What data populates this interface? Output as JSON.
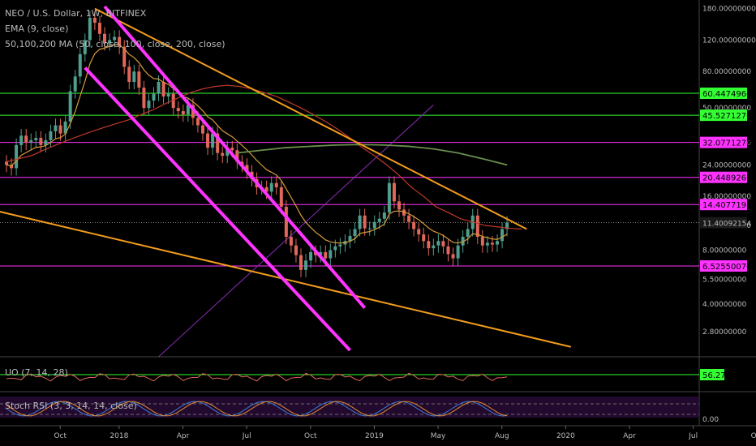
{
  "legend": {
    "symbol": "NEO / U.S. Dollar, 1W, BITFINEX",
    "ema": "EMA (9, close)",
    "ma": "50,100,200 MA (50, close, 100, close, 200, close)",
    "uo": "UO (7, 14, 28)",
    "stoch": "Stoch RSI (3, 3, 14, 14, close)"
  },
  "colors": {
    "background": "#000000",
    "up": "#4f9e8e",
    "down": "#e0685a",
    "ema": "#d69b3a",
    "ma50": "#c0392b",
    "ma100": "#6a8f4e",
    "trend_orange": "#f29d1c",
    "channel_magenta": "#ff33ff",
    "level_green": "#33ff33",
    "level_magenta": "#ff33ff",
    "fib_purple": "#8b2db5"
  },
  "chart_data": [
    {
      "type": "candlestick",
      "title": "NEO / U.S. Dollar, 1W, BITFINEX",
      "x_ticks": [
        "Oct",
        "2018",
        "Apr",
        "Jul",
        "Oct",
        "2019",
        "May",
        "Aug",
        "2020",
        "Apr",
        "Jul",
        "Oct"
      ],
      "y_scale": "log",
      "y_ticks": [
        "180.00000000",
        "120.00000000",
        "80.00000000",
        "50.00000000",
        "32.00000000",
        "24.00000000",
        "16.00000000",
        "11.00000000",
        "8.00000000",
        "5.50000000",
        "4.00000000",
        "2.80000000"
      ],
      "ylim": [
        2.2,
        185
      ],
      "last_price": 11.40092154,
      "ohlc_weekly_approx": {
        "start": "2017-09-04",
        "open": [
          25,
          24,
          23,
          31,
          35,
          32,
          33,
          34,
          31,
          33,
          37,
          40,
          36,
          42,
          62,
          75,
          100,
          120,
          160,
          150,
          130,
          115,
          120,
          125,
          110,
          85,
          70,
          80,
          65,
          50,
          55,
          60,
          70,
          58,
          60,
          50,
          48,
          46,
          52,
          44,
          40,
          36,
          30,
          36,
          28,
          27,
          30,
          29,
          25,
          24,
          22,
          20,
          18,
          18,
          17,
          19,
          18,
          14,
          9.5,
          8.5,
          7.5,
          6.2,
          7.0,
          7.8,
          7.5,
          7.8,
          7.2,
          8.0,
          8.4,
          8.6,
          9.0,
          9.6,
          10.5,
          12.5,
          10.6,
          10.6,
          11.5,
          12.0,
          13.0,
          19.0,
          15.0,
          13.5,
          12.5,
          11.5,
          10.5,
          9.8,
          9.0,
          8.2,
          8.5,
          9.0,
          8.4,
          7.6,
          7.2,
          8.5,
          9.5,
          10.5,
          12.5,
          9.5,
          8.5,
          8.8,
          8.6,
          9.0,
          10.5
        ],
        "close": [
          24,
          23,
          31,
          35,
          32,
          33,
          34,
          31,
          33,
          37,
          40,
          36,
          42,
          62,
          75,
          100,
          120,
          160,
          150,
          130,
          115,
          120,
          125,
          110,
          85,
          70,
          80,
          65,
          50,
          55,
          60,
          70,
          58,
          60,
          50,
          48,
          46,
          52,
          44,
          40,
          36,
          30,
          36,
          28,
          27,
          30,
          29,
          25,
          24,
          22,
          20,
          18,
          18,
          17,
          19,
          18,
          14,
          9.5,
          8.5,
          7.5,
          6.2,
          7.0,
          7.8,
          7.5,
          7.8,
          7.2,
          8.0,
          8.4,
          8.6,
          9.0,
          9.6,
          10.5,
          12.5,
          10.6,
          10.6,
          11.5,
          12.0,
          13.0,
          19.0,
          15.0,
          13.5,
          12.5,
          11.5,
          10.5,
          9.8,
          9.0,
          8.2,
          8.5,
          9.0,
          8.4,
          7.6,
          7.2,
          8.5,
          9.5,
          10.5,
          12.5,
          9.5,
          8.5,
          8.8,
          8.6,
          9.0,
          10.5,
          11.4
        ]
      },
      "ma50": [
        25,
        26,
        27,
        29,
        31,
        33,
        35,
        37,
        39,
        41,
        43,
        46,
        49,
        53,
        57,
        61,
        64,
        66,
        67,
        66,
        64,
        61,
        58,
        54,
        50,
        46,
        42,
        38,
        34,
        30,
        27,
        24,
        21,
        18,
        16,
        14,
        13,
        12,
        11.5,
        11,
        10.8,
        10.6,
        10.5
      ],
      "ma100": [
        28,
        29,
        30,
        30.5,
        31,
        31.2,
        31,
        30.5,
        29.5,
        28,
        26,
        24
      ],
      "horizontal_levels": [
        {
          "label": "60.44749604",
          "value": 60.44749604,
          "color": "green"
        },
        {
          "label": "45.52712765",
          "value": 45.52712765,
          "color": "green"
        },
        {
          "label": "32.07712780",
          "value": 32.0771278,
          "color": "magenta"
        },
        {
          "label": "20.44892611",
          "value": 20.44892611,
          "color": "magenta"
        },
        {
          "label": "14.40771929",
          "value": 14.40771929,
          "color": "magenta"
        },
        {
          "label": "6.52550070",
          "value": 6.5255007,
          "color": "magenta"
        }
      ],
      "last_price_label": "11.40092154",
      "grid": false
    },
    {
      "type": "line",
      "title": "UO (7, 14, 28)",
      "last_value_label": "56.27",
      "last_value": 56.27
    },
    {
      "type": "line",
      "title": "Stoch RSI (3, 3, 14, 14, close)",
      "y_ticks": [
        "0.00"
      ]
    }
  ]
}
